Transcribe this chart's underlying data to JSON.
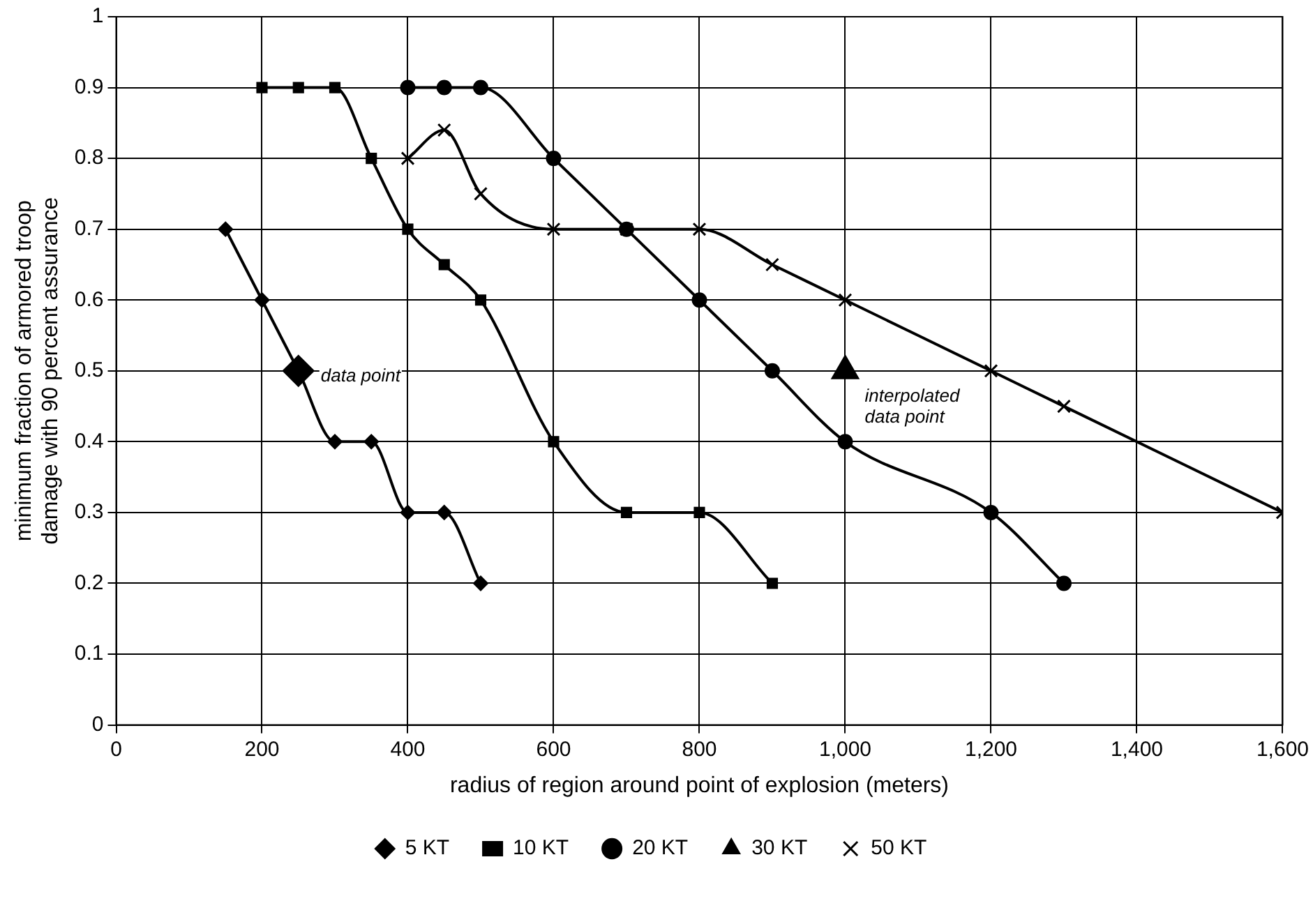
{
  "chart_data": {
    "type": "line",
    "xlabel": "radius of region around point of explosion (meters)",
    "ylabel": "minimum fraction of armored troop damage with 90 percent assurance",
    "xlim": [
      0,
      1600
    ],
    "xticks": [
      0,
      200,
      400,
      600,
      800,
      {
        "value": 1000,
        "label": "1,000"
      },
      {
        "value": 1200,
        "label": "1,200"
      },
      {
        "value": 1400,
        "label": "1,400"
      },
      {
        "value": 1600,
        "label": "1,600"
      }
    ],
    "ylim": [
      0,
      1
    ],
    "yticks": [
      0,
      0.1,
      0.2,
      0.3,
      0.4,
      0.5,
      0.6,
      0.7,
      0.8,
      0.9,
      1
    ],
    "grid": true,
    "legend": "bottom",
    "series": [
      {
        "name": "5 KT",
        "color": "#000000",
        "marker": "diamond",
        "x": [
          150,
          200,
          250,
          300,
          350,
          400,
          450,
          500
        ],
        "values": [
          0.7,
          0.6,
          0.5,
          0.4,
          0.4,
          0.3,
          0.3,
          0.2
        ]
      },
      {
        "name": "10 KT",
        "color": "#000000",
        "marker": "square",
        "x": [
          200,
          250,
          300,
          350,
          400,
          450,
          500,
          600,
          700,
          800,
          900
        ],
        "values": [
          0.9,
          0.9,
          0.9,
          0.8,
          0.7,
          0.65,
          0.6,
          0.4,
          0.3,
          0.3,
          0.2
        ]
      },
      {
        "name": "20 KT",
        "color": "#000000",
        "marker": "circle",
        "x": [
          400,
          450,
          500,
          600,
          700,
          800,
          900,
          1000,
          1200,
          1300
        ],
        "values": [
          0.9,
          0.9,
          0.9,
          0.8,
          0.7,
          0.6,
          0.5,
          0.4,
          0.3,
          0.2
        ]
      },
      {
        "name": "30 KT",
        "color": "#000000",
        "marker": "triangle",
        "x": [
          1000
        ],
        "values": [
          0.5
        ]
      },
      {
        "name": "50 KT",
        "color": "#000000",
        "marker": "cross",
        "x": [
          400,
          450,
          500,
          600,
          700,
          800,
          900,
          1000,
          1200,
          1300,
          1600
        ],
        "values": [
          0.8,
          0.84,
          0.75,
          0.7,
          0.7,
          0.7,
          0.65,
          0.6,
          0.5,
          0.45,
          0.3
        ]
      }
    ],
    "annotations": [
      {
        "text": "data point",
        "x": 250,
        "y": 0.5
      },
      {
        "text": "interpolated data point",
        "x": 1000,
        "y": 0.5
      }
    ]
  }
}
